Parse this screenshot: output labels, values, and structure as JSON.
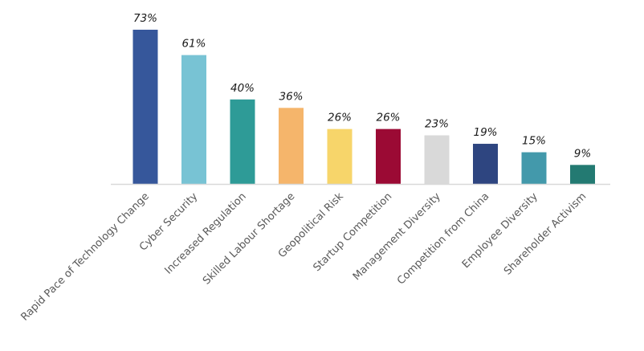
{
  "chart_data": {
    "type": "bar",
    "title": "",
    "xlabel": "",
    "ylabel": "",
    "ylim": [
      0,
      100
    ],
    "grid": false,
    "legend": "none",
    "categories": [
      "Rapid Pace of Technology Change",
      "Cyber Security",
      "Increased Regulation",
      "Skilled Labour Shortage",
      "Geopolitical Risk",
      "Startup Competition",
      "Management Diversity",
      "Competition from China",
      "Employee Diversity",
      "Shareholder Activism"
    ],
    "values": [
      73,
      61,
      40,
      36,
      26,
      26,
      23,
      19,
      15,
      9
    ],
    "value_labels": [
      "73%",
      "61%",
      "40%",
      "36%",
      "26%",
      "26%",
      "23%",
      "19%",
      "15%",
      "9%"
    ],
    "colors": [
      "#36579b",
      "#78c3d4",
      "#2e9b97",
      "#f5b56b",
      "#f7d56a",
      "#9b0a34",
      "#d9d9d9",
      "#2e4580",
      "#4399ab",
      "#237a72"
    ],
    "axis_color": "#d9d9d9"
  }
}
